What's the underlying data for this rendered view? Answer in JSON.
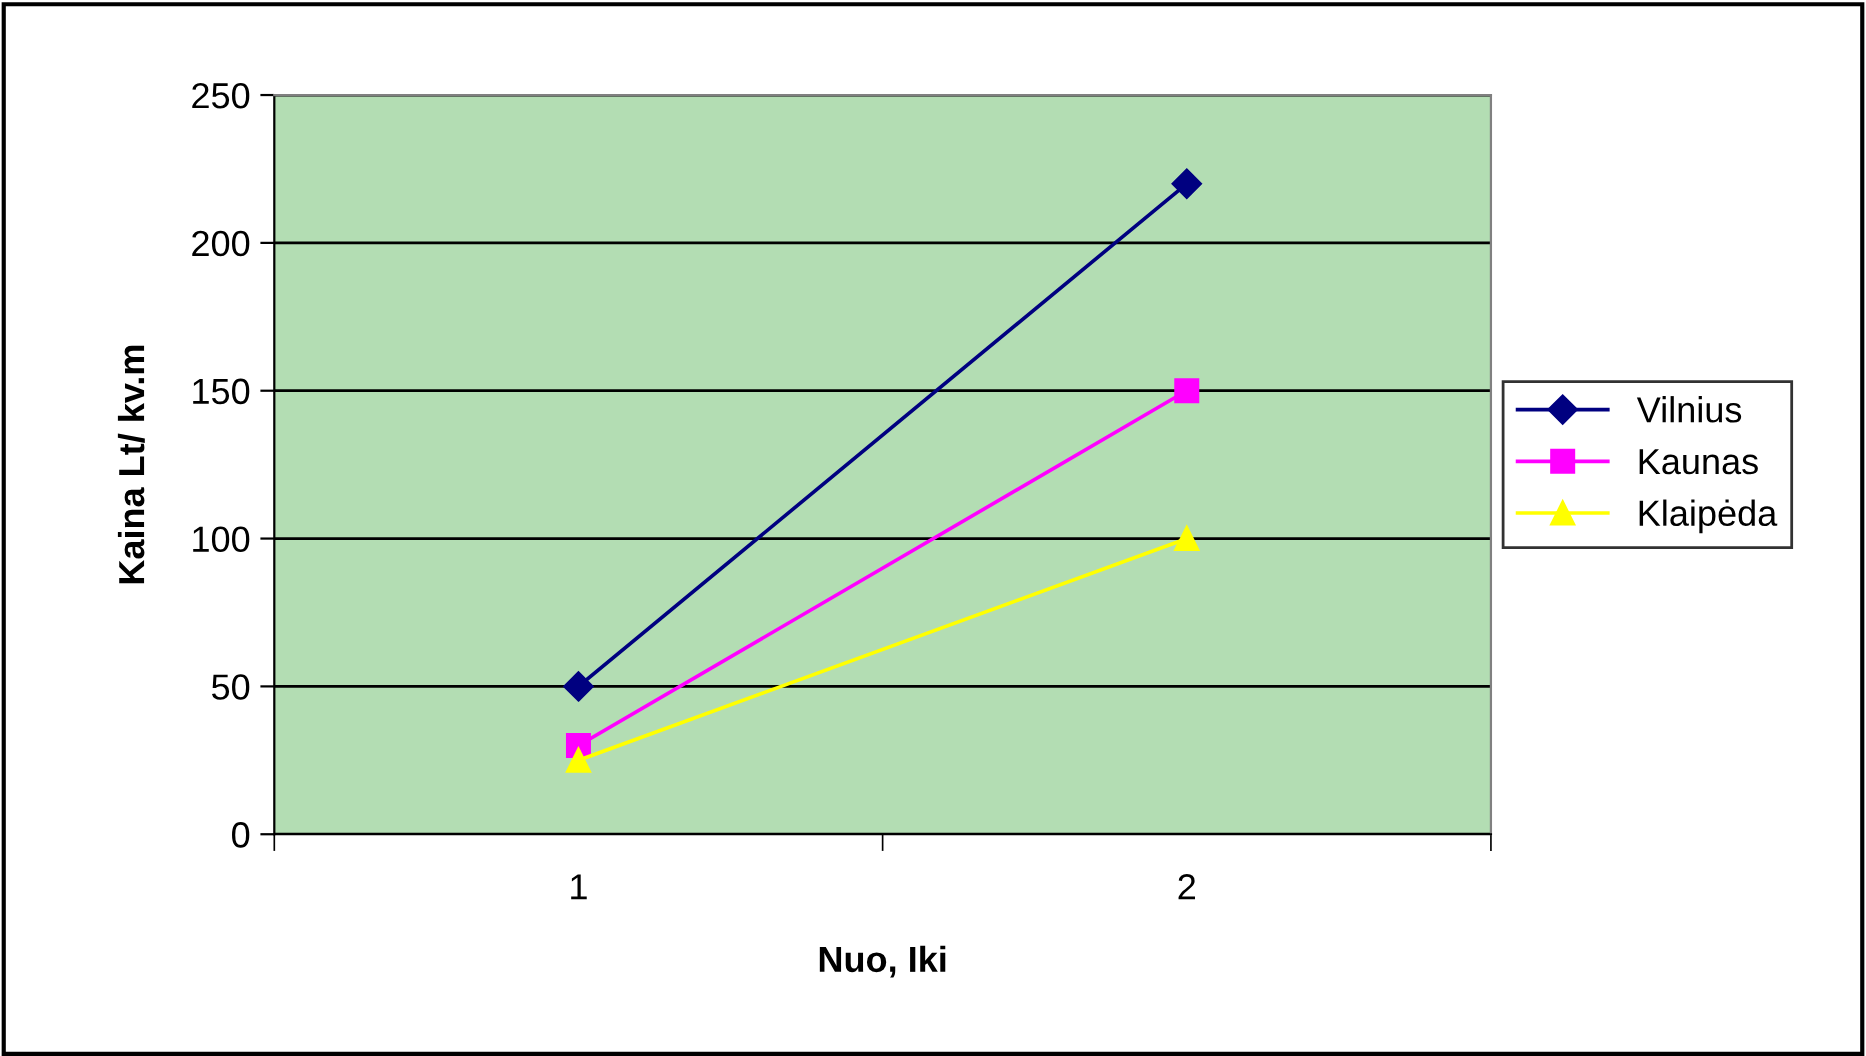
{
  "chart_data": {
    "type": "line",
    "xlabel": "Nuo, Iki",
    "ylabel": "Kaina Lt/ kv.m",
    "categories": [
      "1",
      "2"
    ],
    "series": [
      {
        "name": "Vilnius",
        "color": "#000080",
        "marker": "diamond",
        "values": [
          50,
          220
        ]
      },
      {
        "name": "Kaunas",
        "color": "#ff00ff",
        "marker": "square",
        "values": [
          30,
          150
        ]
      },
      {
        "name": "Klaipėda",
        "color": "#ffff00",
        "marker": "triangle",
        "values": [
          25,
          100
        ]
      }
    ],
    "ylim": [
      0,
      250
    ],
    "yticks": [
      0,
      50,
      100,
      150,
      200,
      250
    ],
    "grid": "y",
    "legend": "right"
  }
}
